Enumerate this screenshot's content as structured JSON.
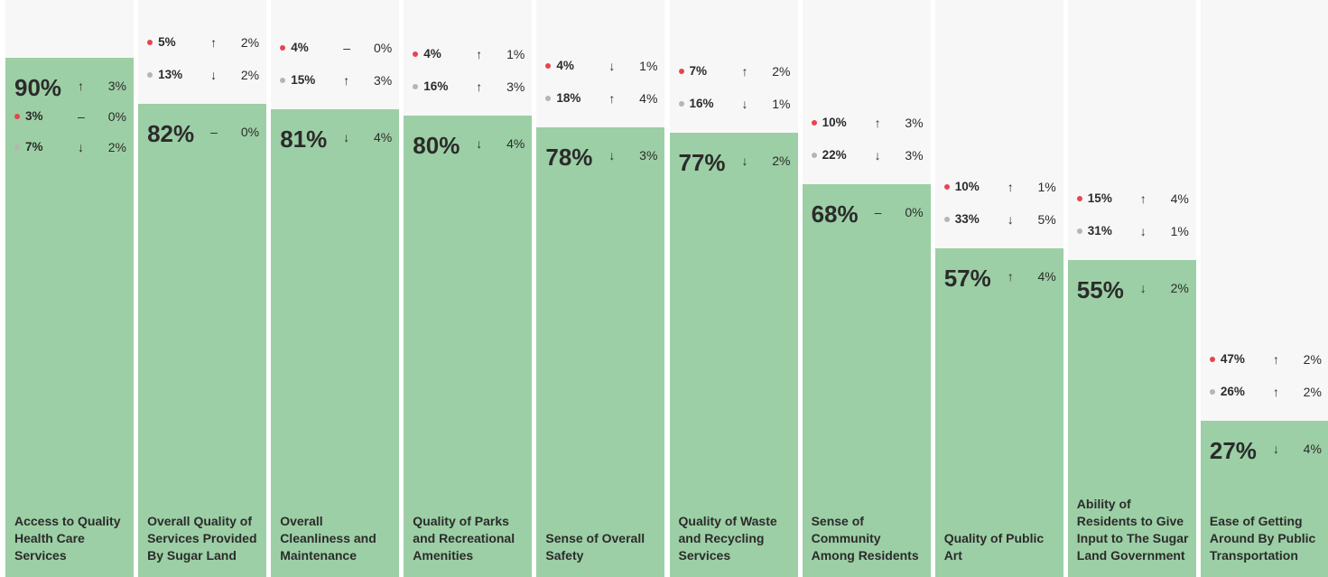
{
  "chart_data": {
    "type": "bar",
    "categories": [
      "Access to Quality Health Care Services",
      "Overall Quality of Services Provided By Sugar Land",
      "Overall Cleanliness and Maintenance",
      "Quality of Parks and Recreational Amenities",
      "Sense of Overall Safety",
      "Quality of Waste and Recycling Services",
      "Sense of Community Among Residents",
      "Quality of Public Art",
      "Ability of Residents to Give Input to The Sugar Land Government",
      "Ease of Getting Around By Public Transportation"
    ],
    "values": [
      90,
      82,
      81,
      80,
      78,
      77,
      68,
      57,
      55,
      27
    ],
    "value_labels": [
      "90%",
      "82%",
      "81%",
      "80%",
      "78%",
      "77%",
      "68%",
      "57%",
      "55%",
      "27%"
    ],
    "change_dir": [
      "↑",
      "–",
      "↓",
      "↓",
      "↓",
      "↓",
      "–",
      "↑",
      "↓",
      "↓"
    ],
    "change": [
      3,
      0,
      4,
      4,
      3,
      2,
      0,
      4,
      2,
      4
    ],
    "change_labels": [
      "3%",
      "0%",
      "4%",
      "4%",
      "3%",
      "2%",
      "0%",
      "4%",
      "2%",
      "4%"
    ],
    "color": "#9ccfa5",
    "ylim": [
      0,
      100
    ],
    "series": [
      {
        "color": "#e8444f",
        "values": [
          3,
          5,
          4,
          4,
          4,
          7,
          10,
          10,
          15,
          47
        ],
        "value_labels": [
          "3%",
          "5%",
          "4%",
          "4%",
          "4%",
          "7%",
          "10%",
          "10%",
          "15%",
          "47%"
        ],
        "change_dir": [
          "–",
          "↑",
          "–",
          "↑",
          "↓",
          "↑",
          "↑",
          "↑",
          "↑",
          "↑"
        ],
        "change": [
          0,
          2,
          0,
          1,
          1,
          2,
          3,
          1,
          4,
          2
        ],
        "change_labels": [
          "0%",
          "2%",
          "0%",
          "1%",
          "1%",
          "2%",
          "3%",
          "1%",
          "4%",
          "2%"
        ]
      },
      {
        "color": "#b5b5b5",
        "values": [
          7,
          13,
          15,
          16,
          18,
          16,
          22,
          33,
          31,
          26
        ],
        "value_labels": [
          "7%",
          "13%",
          "15%",
          "16%",
          "18%",
          "16%",
          "22%",
          "33%",
          "31%",
          "26%"
        ],
        "change_dir": [
          "↓",
          "↓",
          "↑",
          "↑",
          "↑",
          "↓",
          "↓",
          "↓",
          "↓",
          "↑"
        ],
        "change": [
          2,
          2,
          3,
          3,
          4,
          1,
          3,
          5,
          1,
          2
        ],
        "change_labels": [
          "2%",
          "2%",
          "3%",
          "3%",
          "4%",
          "1%",
          "3%",
          "5%",
          "1%",
          "2%"
        ]
      }
    ]
  }
}
